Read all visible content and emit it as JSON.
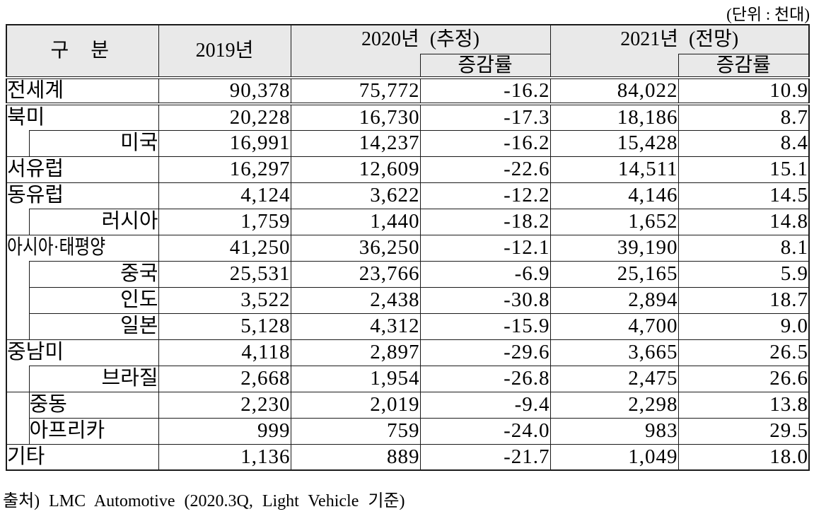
{
  "unit_note": "(단위 : 천대)",
  "source_note": "출처) LMC Automotive (2020.3Q, Light Vehicle 기준)",
  "colors": {
    "header_bg": "#e9e9e9",
    "border": "#1a1a1a",
    "text": "#000000"
  },
  "table": {
    "header": {
      "category": "구 분",
      "y2019": "2019년",
      "y2020": "2020년 (추정)",
      "y2021": "2021년 (전망)",
      "rate": "증감률"
    },
    "rows": [
      {
        "key": "world",
        "label": "전세계",
        "type": "world",
        "double_rule_below": true,
        "v2019": "90,378",
        "v2020": "75,772",
        "r2020": "-16.2",
        "v2021": "84,022",
        "r2021": "10.9"
      },
      {
        "key": "north-america",
        "label": "북미",
        "type": "major",
        "v2019": "20,228",
        "v2020": "16,730",
        "r2020": "-17.3",
        "v2021": "18,186",
        "r2021": "8.7"
      },
      {
        "key": "usa",
        "label": "미국",
        "type": "sub",
        "v2019": "16,991",
        "v2020": "14,237",
        "r2020": "-16.2",
        "v2021": "15,428",
        "r2021": "8.4"
      },
      {
        "key": "west-europe",
        "label": "서유럽",
        "type": "major",
        "v2019": "16,297",
        "v2020": "12,609",
        "r2020": "-22.6",
        "v2021": "14,511",
        "r2021": "15.1"
      },
      {
        "key": "east-europe",
        "label": "동유럽",
        "type": "major",
        "v2019": "4,124",
        "v2020": "3,622",
        "r2020": "-12.2",
        "v2021": "4,146",
        "r2021": "14.5"
      },
      {
        "key": "russia",
        "label": "러시아",
        "type": "sub",
        "v2019": "1,759",
        "v2020": "1,440",
        "r2020": "-18.2",
        "v2021": "1,652",
        "r2021": "14.8"
      },
      {
        "key": "asia-pacific",
        "label": "아시아·태평양",
        "type": "major",
        "compress": true,
        "v2019": "41,250",
        "v2020": "36,250",
        "r2020": "-12.1",
        "v2021": "39,190",
        "r2021": "8.1"
      },
      {
        "key": "china",
        "label": "중국",
        "type": "sub",
        "v2019": "25,531",
        "v2020": "23,766",
        "r2020": "-6.9",
        "v2021": "25,165",
        "r2021": "5.9"
      },
      {
        "key": "india",
        "label": "인도",
        "type": "sub",
        "v2019": "3,522",
        "v2020": "2,438",
        "r2020": "-30.8",
        "v2021": "2,894",
        "r2021": "18.7"
      },
      {
        "key": "japan",
        "label": "일본",
        "type": "sub",
        "v2019": "5,128",
        "v2020": "4,312",
        "r2020": "-15.9",
        "v2021": "4,700",
        "r2021": "9.0"
      },
      {
        "key": "latin-america",
        "label": "중남미",
        "type": "major",
        "v2019": "4,118",
        "v2020": "2,897",
        "r2020": "-29.6",
        "v2021": "3,665",
        "r2021": "26.5"
      },
      {
        "key": "brazil",
        "label": "브라질",
        "type": "sub",
        "v2019": "2,668",
        "v2020": "1,954",
        "r2020": "-26.8",
        "v2021": "2,475",
        "r2021": "26.6"
      },
      {
        "key": "middle-east",
        "label": "중동",
        "type": "group-major-first",
        "v2019": "2,230",
        "v2020": "2,019",
        "r2020": "-9.4",
        "v2021": "2,298",
        "r2021": "13.8"
      },
      {
        "key": "africa",
        "label": "아프리카",
        "type": "group-major",
        "v2019": "999",
        "v2020": "759",
        "r2020": "-24.0",
        "v2021": "983",
        "r2021": "29.5"
      },
      {
        "key": "others",
        "label": "기타",
        "type": "major",
        "v2019": "1,136",
        "v2020": "889",
        "r2020": "-21.7",
        "v2021": "1,049",
        "r2021": "18.0"
      }
    ]
  }
}
